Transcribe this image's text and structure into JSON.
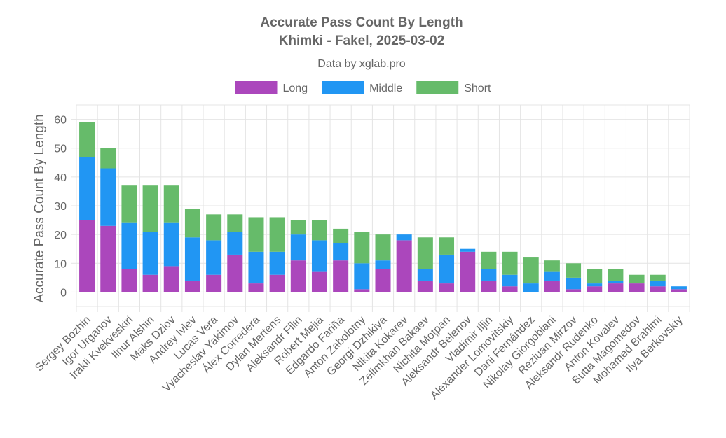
{
  "chart_data": {
    "type": "bar",
    "stacked": true,
    "title": "Accurate Pass Count By Length",
    "subtitle": "Khimki - Fakel, 2025-03-02",
    "caption": "Data by xglab.pro",
    "ylabel": "Accurate Pass Count By Length",
    "ylim": [
      -5,
      65
    ],
    "yticks": [
      0,
      10,
      20,
      30,
      40,
      50,
      60
    ],
    "grid": true,
    "legend_position": "top",
    "categories": [
      "Sergey Bozhin",
      "Igor Urganov",
      "Irakli Kvekveskiri",
      "Ilnur Alshin",
      "Maks Dziov",
      "Andrey Ivlev",
      "Lucas Vera",
      "Vyacheslav Yakimov",
      "Álex Corredera",
      "Dylan Mertens",
      "Aleksandr Filin",
      "Robert Mejia",
      "Edgardo Fariña",
      "Anton Zabolotny",
      "Georgi Dzhikiya",
      "Nikita Kokarev",
      "Zelimkhan Bakaev",
      "Nichita Moțpan",
      "Aleksandr Belenov",
      "Vladimir Iljin",
      "Alexander Lomovitskiy",
      "Dani Fernández",
      "Nikolay Giorgobiani",
      "Reziuan Mirzov",
      "Aleksandr Rudenko",
      "Anton Kovalev",
      "Butta Magomedov",
      "Mohamed Brahimi",
      "Ilya Berkovskiy"
    ],
    "series": [
      {
        "name": "Long",
        "color": "#ab47bc",
        "values": [
          25,
          23,
          8,
          6,
          9,
          4,
          6,
          13,
          3,
          6,
          11,
          7,
          11,
          1,
          8,
          18,
          4,
          3,
          14,
          4,
          2,
          0,
          4,
          1,
          2,
          3,
          3,
          2,
          1
        ]
      },
      {
        "name": "Middle",
        "color": "#2196f3",
        "values": [
          22,
          20,
          16,
          15,
          15,
          15,
          12,
          8,
          11,
          8,
          9,
          11,
          6,
          9,
          3,
          2,
          4,
          10,
          1,
          4,
          4,
          3,
          3,
          4,
          1,
          1,
          0,
          2,
          1
        ]
      },
      {
        "name": "Short",
        "color": "#66bb6a",
        "values": [
          12,
          7,
          13,
          16,
          13,
          10,
          9,
          6,
          12,
          12,
          5,
          7,
          5,
          11,
          9,
          0,
          11,
          6,
          0,
          6,
          8,
          9,
          4,
          5,
          5,
          4,
          3,
          2,
          0
        ]
      }
    ]
  }
}
